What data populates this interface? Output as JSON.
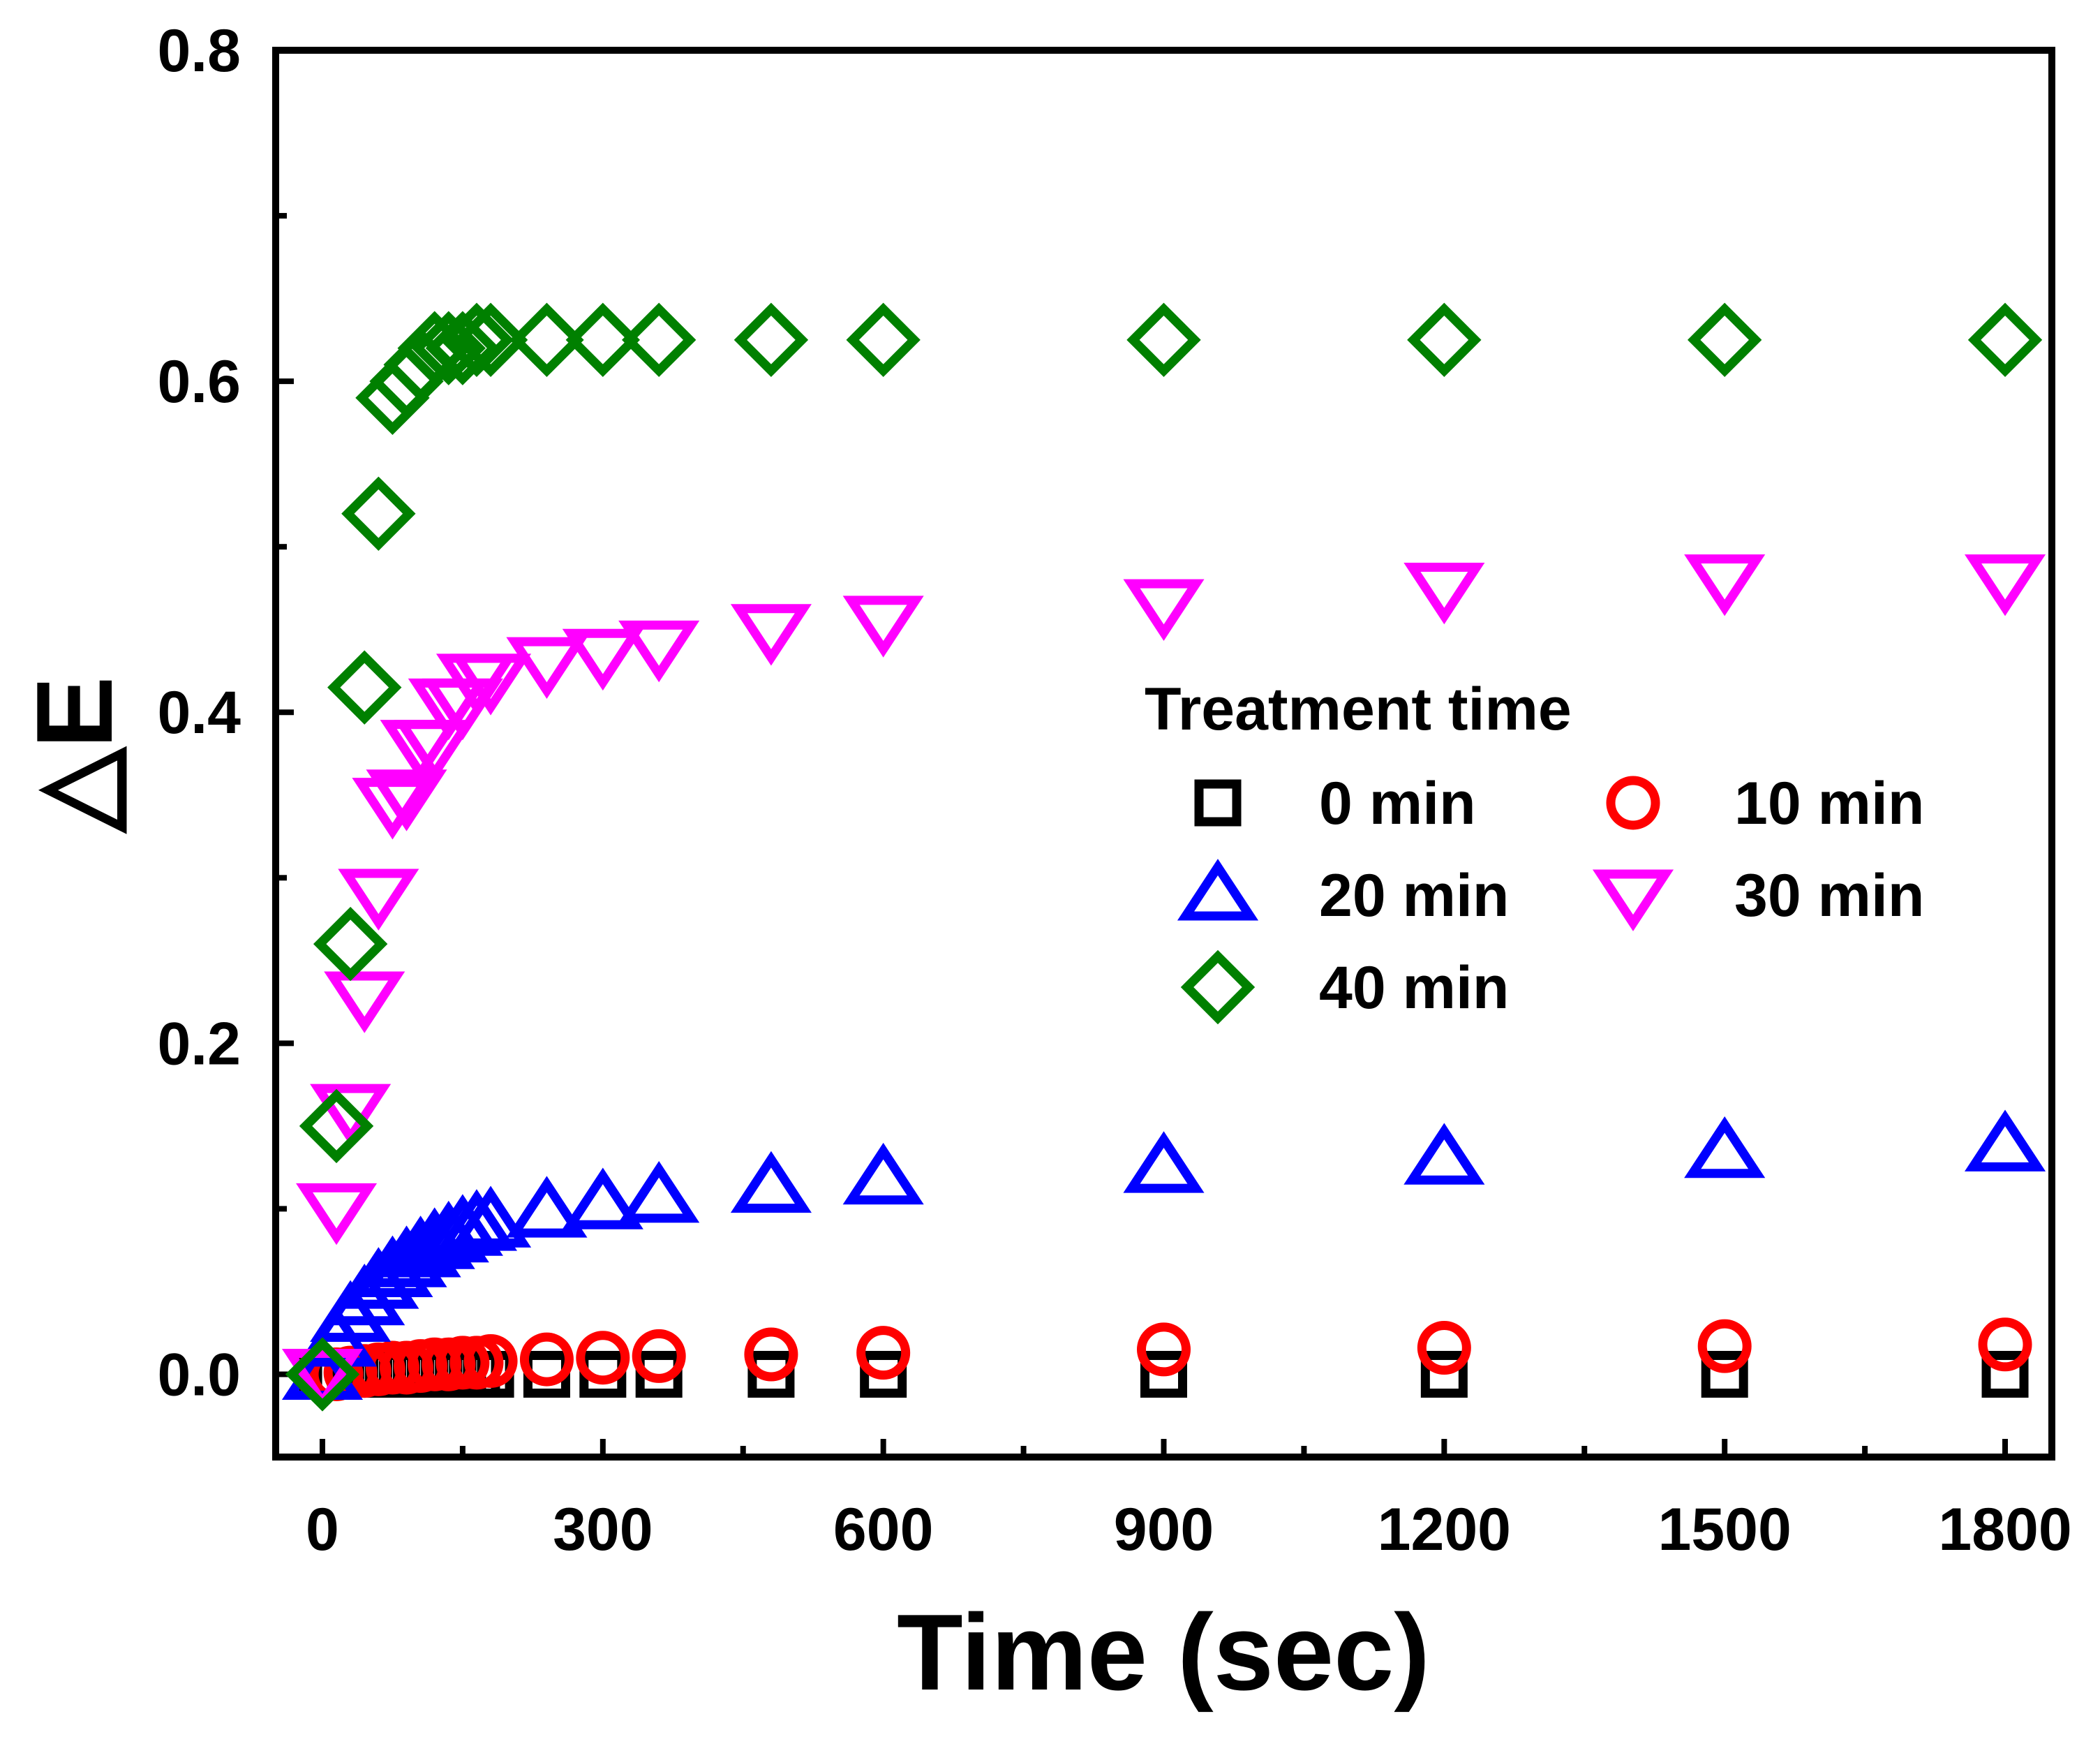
{
  "chart_data": {
    "type": "scatter",
    "title": "",
    "xlabel": "Time (sec)",
    "ylabel": "△E",
    "xlim": [
      -50,
      1850
    ],
    "ylim": [
      -0.05,
      0.8
    ],
    "xticks": [
      0,
      300,
      600,
      900,
      1200,
      1500,
      1800
    ],
    "xtick_labels": [
      "0",
      "300",
      "600",
      "900",
      "1200",
      "1500",
      "1800"
    ],
    "yticks": [
      0.0,
      0.2,
      0.4,
      0.6,
      0.8
    ],
    "ytick_labels": [
      "0.0",
      "0.2",
      "0.4",
      "0.6",
      "0.8"
    ],
    "legend_title": "Treatment time",
    "legend_position": "center-right",
    "x": [
      0,
      15,
      30,
      45,
      60,
      75,
      90,
      105,
      120,
      135,
      150,
      165,
      180,
      240,
      300,
      360,
      480,
      600,
      900,
      1200,
      1500,
      1800
    ],
    "series": [
      {
        "name": "0 min",
        "marker": "square",
        "color": "#000000",
        "values": [
          0.0,
          0.0,
          0.0,
          0.0,
          0.0,
          0.0,
          0.0,
          0.0,
          0.0,
          0.0,
          0.0,
          0.0,
          0.0,
          0.0,
          0.0,
          0.0,
          0.0,
          0.0,
          0.0,
          0.0,
          0.0,
          0.0
        ]
      },
      {
        "name": "10 min",
        "marker": "circle",
        "color": "#ff0000",
        "values": [
          0.0,
          0.0,
          0.001,
          0.002,
          0.003,
          0.004,
          0.004,
          0.005,
          0.006,
          0.006,
          0.007,
          0.007,
          0.008,
          0.009,
          0.01,
          0.011,
          0.012,
          0.013,
          0.015,
          0.016,
          0.017,
          0.018
        ]
      },
      {
        "name": "20 min",
        "marker": "triangle-up",
        "color": "#0000ff",
        "values": [
          0.0,
          0.02,
          0.035,
          0.045,
          0.055,
          0.062,
          0.068,
          0.074,
          0.079,
          0.083,
          0.087,
          0.09,
          0.092,
          0.098,
          0.103,
          0.107,
          0.113,
          0.118,
          0.125,
          0.13,
          0.134,
          0.138
        ]
      },
      {
        "name": "30 min",
        "marker": "triangle-down",
        "color": "#ff00ff",
        "values": [
          0.0,
          0.1,
          0.16,
          0.228,
          0.29,
          0.345,
          0.35,
          0.38,
          0.38,
          0.405,
          0.405,
          0.42,
          0.42,
          0.43,
          0.435,
          0.44,
          0.45,
          0.455,
          0.465,
          0.475,
          0.48,
          0.48
        ]
      },
      {
        "name": "40 min",
        "marker": "diamond",
        "color": "#008000",
        "values": [
          0.0,
          0.15,
          0.26,
          0.415,
          0.52,
          0.59,
          0.6,
          0.61,
          0.62,
          0.62,
          0.62,
          0.625,
          0.625,
          0.625,
          0.625,
          0.625,
          0.625,
          0.625,
          0.625,
          0.625,
          0.625,
          0.625
        ]
      }
    ]
  }
}
